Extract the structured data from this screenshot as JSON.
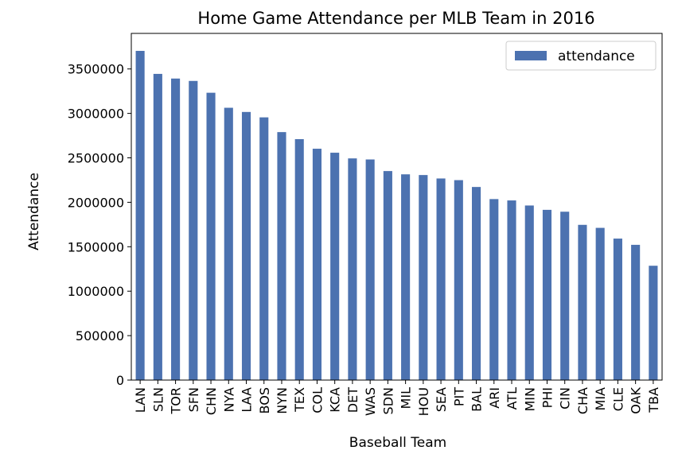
{
  "chart_data": {
    "type": "bar",
    "title": "Home Game Attendance per MLB Team in 2016",
    "xlabel": "Baseball Team",
    "ylabel": "Attendance",
    "categories": [
      "LAN",
      "SLN",
      "TOR",
      "SFN",
      "CHN",
      "NYA",
      "LAA",
      "BOS",
      "NYN",
      "TEX",
      "COL",
      "KCA",
      "DET",
      "WAS",
      "SDN",
      "MIL",
      "HOU",
      "SEA",
      "PIT",
      "BAL",
      "ARI",
      "ATL",
      "MIN",
      "PHI",
      "CIN",
      "CHA",
      "MIA",
      "CLE",
      "OAK",
      "TBA"
    ],
    "series": [
      {
        "name": "attendance",
        "color": "#4c72b0",
        "values": [
          3703312,
          3444490,
          3392099,
          3365256,
          3232420,
          3063405,
          3016142,
          2955434,
          2789602,
          2710402,
          2602524,
          2557712,
          2493859,
          2481938,
          2351422,
          2314614,
          2306623,
          2267928,
          2249201,
          2172344,
          2036216,
          2020914,
          1963912,
          1915144,
          1894085,
          1746293,
          1712417,
          1591667,
          1521506,
          1286163
        ]
      }
    ],
    "ylim": [
      0,
      3900000
    ],
    "yticks": [
      0,
      500000,
      1000000,
      1500000,
      2000000,
      2500000,
      3000000,
      3500000
    ],
    "ytick_labels": [
      "0",
      "500000",
      "1000000",
      "1500000",
      "2000000",
      "2500000",
      "3000000",
      "3500000"
    ],
    "grid": false,
    "legend_position": "top-right"
  }
}
